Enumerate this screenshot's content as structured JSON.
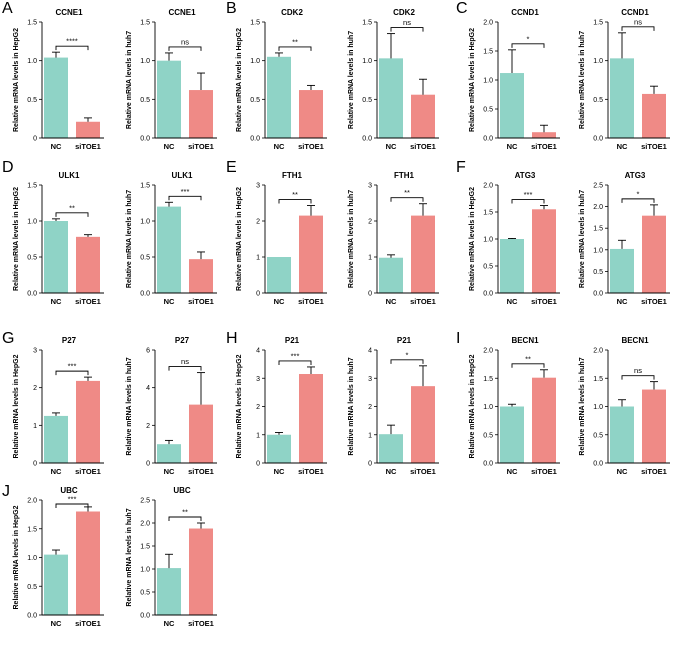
{
  "colors": {
    "nc": "#8fd3c6",
    "sitoe1": "#ef8a86",
    "axis": "#000000",
    "error": "#000000"
  },
  "panels": [
    {
      "label": "A"
    },
    {
      "label": "B"
    },
    {
      "label": "C"
    },
    {
      "label": "D"
    },
    {
      "label": "E"
    },
    {
      "label": "F"
    },
    {
      "label": "G"
    },
    {
      "label": "H"
    },
    {
      "label": "I"
    },
    {
      "label": "J"
    }
  ],
  "chart_data": [
    {
      "id": "A1",
      "panel": "A",
      "type": "bar",
      "title": "CCNE1",
      "ylabel": "Relative mRNA levels in HepG2",
      "categories": [
        "NC",
        "siTOE1"
      ],
      "values": [
        1.04,
        0.21
      ],
      "errors": [
        0.07,
        0.05
      ],
      "ylim": [
        0,
        1.5
      ],
      "yticks": [
        "0",
        "0.5",
        "1.0",
        "1.5"
      ],
      "significance": "****"
    },
    {
      "id": "A2",
      "panel": "A",
      "type": "bar",
      "title": "CCNE1",
      "ylabel": "Relative mRNA levels in huh7",
      "categories": [
        "NC",
        "siTOE1"
      ],
      "values": [
        1.0,
        0.62
      ],
      "errors": [
        0.1,
        0.22
      ],
      "ylim": [
        0,
        1.5
      ],
      "yticks": [
        "0.0",
        "0.5",
        "1.0",
        "1.5"
      ],
      "significance": "ns"
    },
    {
      "id": "B1",
      "panel": "B",
      "type": "bar",
      "title": "CDK2",
      "ylabel": "Relative mRNA levels in HepG2",
      "categories": [
        "NC",
        "siTOE1"
      ],
      "values": [
        1.05,
        0.62
      ],
      "errors": [
        0.05,
        0.06
      ],
      "ylim": [
        0,
        1.5
      ],
      "yticks": [
        "0.0",
        "0.5",
        "1.0",
        "1.5"
      ],
      "significance": "**"
    },
    {
      "id": "B2",
      "panel": "B",
      "type": "bar",
      "title": "CDK2",
      "ylabel": "Relative mRNA levels in huh7",
      "categories": [
        "NC",
        "siTOE1"
      ],
      "values": [
        1.03,
        0.56
      ],
      "errors": [
        0.32,
        0.2
      ],
      "ylim": [
        0,
        1.5
      ],
      "yticks": [
        "0.0",
        "0.5",
        "1.0",
        "1.5"
      ],
      "significance": "ns"
    },
    {
      "id": "C1",
      "panel": "C",
      "type": "bar",
      "title": "CCND1",
      "ylabel": "Relative mRNA levels in HepG2",
      "categories": [
        "NC",
        "siTOE1"
      ],
      "values": [
        1.12,
        0.1
      ],
      "errors": [
        0.4,
        0.12
      ],
      "ylim": [
        0,
        2.0
      ],
      "yticks": [
        "0.0",
        "0.5",
        "1.0",
        "1.5",
        "2.0"
      ],
      "significance": "*"
    },
    {
      "id": "C2",
      "panel": "C",
      "type": "bar",
      "title": "CCND1",
      "ylabel": "Relative mRNA levels in huh7",
      "categories": [
        "NC",
        "siTOE1"
      ],
      "values": [
        1.03,
        0.57
      ],
      "errors": [
        0.33,
        0.1
      ],
      "ylim": [
        0,
        1.5
      ],
      "yticks": [
        "0.0",
        "0.5",
        "1.0",
        "1.5"
      ],
      "significance": "ns"
    },
    {
      "id": "D1",
      "panel": "D",
      "type": "bar",
      "title": "ULK1",
      "ylabel": "Relative mRNA levels in HepG2",
      "categories": [
        "NC",
        "siTOE1"
      ],
      "values": [
        1.0,
        0.78
      ],
      "errors": [
        0.03,
        0.03
      ],
      "ylim": [
        0,
        1.5
      ],
      "yticks": [
        "0.0",
        "0.5",
        "1.0",
        "1.5"
      ],
      "significance": "**"
    },
    {
      "id": "D2",
      "panel": "D",
      "type": "bar",
      "title": "ULK1",
      "ylabel": "Relative mRNA levels in huh7",
      "categories": [
        "NC",
        "siTOE1"
      ],
      "values": [
        1.2,
        0.47
      ],
      "errors": [
        0.06,
        0.1
      ],
      "ylim": [
        0,
        1.5
      ],
      "yticks": [
        "0.0",
        "0.5",
        "1.0",
        "1.5"
      ],
      "significance": "***"
    },
    {
      "id": "E1",
      "panel": "E",
      "type": "bar",
      "title": "FTH1",
      "ylabel": "Relative mRNA levels in HepG2",
      "categories": [
        "NC",
        "siTOE1"
      ],
      "values": [
        1.0,
        2.15
      ],
      "errors": [
        0.0,
        0.28
      ],
      "ylim": [
        0,
        3
      ],
      "yticks": [
        "0",
        "1",
        "2",
        "3"
      ],
      "significance": "**"
    },
    {
      "id": "E2",
      "panel": "E",
      "type": "bar",
      "title": "FTH1",
      "ylabel": "Relative mRNA levels in huh7",
      "categories": [
        "NC",
        "siTOE1"
      ],
      "values": [
        0.98,
        2.15
      ],
      "errors": [
        0.08,
        0.33
      ],
      "ylim": [
        0,
        3
      ],
      "yticks": [
        "0",
        "1",
        "2",
        "3"
      ],
      "significance": "**"
    },
    {
      "id": "F1",
      "panel": "F",
      "type": "bar",
      "title": "ATG3",
      "ylabel": "Relative mRNA levels in HepG2",
      "categories": [
        "NC",
        "siTOE1"
      ],
      "values": [
        1.0,
        1.55
      ],
      "errors": [
        0.01,
        0.07
      ],
      "ylim": [
        0,
        2.0
      ],
      "yticks": [
        "0.0",
        "0.5",
        "1.0",
        "1.5",
        "2.0"
      ],
      "significance": "***"
    },
    {
      "id": "F2",
      "panel": "F",
      "type": "bar",
      "title": "ATG3",
      "ylabel": "Relative mRNA levels in huh7",
      "categories": [
        "NC",
        "siTOE1"
      ],
      "values": [
        1.02,
        1.79
      ],
      "errors": [
        0.2,
        0.25
      ],
      "ylim": [
        0,
        2.5
      ],
      "yticks": [
        "0.0",
        "0.5",
        "1.0",
        "1.5",
        "2.0",
        "2.5"
      ],
      "significance": "*"
    },
    {
      "id": "G1",
      "panel": "G",
      "type": "bar",
      "title": "P27",
      "ylabel": "Relative mRNA levels in HepG2",
      "categories": [
        "NC",
        "siTOE1"
      ],
      "values": [
        1.25,
        2.18
      ],
      "errors": [
        0.08,
        0.1
      ],
      "ylim": [
        0,
        3
      ],
      "yticks": [
        "0",
        "1",
        "2",
        "3"
      ],
      "significance": "***"
    },
    {
      "id": "G2",
      "panel": "G",
      "type": "bar",
      "title": "P27",
      "ylabel": "Relative mRNA levels in huh7",
      "categories": [
        "NC",
        "siTOE1"
      ],
      "values": [
        1.0,
        3.1
      ],
      "errors": [
        0.2,
        1.7
      ],
      "ylim": [
        0,
        6
      ],
      "yticks": [
        "0",
        "2",
        "4",
        "6"
      ],
      "significance": "ns"
    },
    {
      "id": "H1",
      "panel": "H",
      "type": "bar",
      "title": "P21",
      "ylabel": "Relative mRNA levels in HepG2",
      "categories": [
        "NC",
        "siTOE1"
      ],
      "values": [
        1.0,
        3.15
      ],
      "errors": [
        0.08,
        0.25
      ],
      "ylim": [
        0,
        4
      ],
      "yticks": [
        "0",
        "1",
        "2",
        "3",
        "4"
      ],
      "significance": "***"
    },
    {
      "id": "H2",
      "panel": "H",
      "type": "bar",
      "title": "P21",
      "ylabel": "Relative mRNA levels in huh7",
      "categories": [
        "NC",
        "siTOE1"
      ],
      "values": [
        1.02,
        2.72
      ],
      "errors": [
        0.32,
        0.72
      ],
      "ylim": [
        0,
        4
      ],
      "yticks": [
        "0",
        "1",
        "2",
        "3",
        "4"
      ],
      "significance": "*"
    },
    {
      "id": "I1",
      "panel": "I",
      "type": "bar",
      "title": "BECN1",
      "ylabel": "Relative mRNA levels in HepG2",
      "categories": [
        "NC",
        "siTOE1"
      ],
      "values": [
        1.0,
        1.51
      ],
      "errors": [
        0.04,
        0.14
      ],
      "ylim": [
        0,
        2.0
      ],
      "yticks": [
        "0.0",
        "0.5",
        "1.0",
        "1.5",
        "2.0"
      ],
      "significance": "**"
    },
    {
      "id": "I2",
      "panel": "I",
      "type": "bar",
      "title": "BECN1",
      "ylabel": "Relative mRNA levels in huh7",
      "categories": [
        "NC",
        "siTOE1"
      ],
      "values": [
        1.0,
        1.3
      ],
      "errors": [
        0.12,
        0.14
      ],
      "ylim": [
        0,
        2.0
      ],
      "yticks": [
        "0.0",
        "0.5",
        "1.0",
        "1.5",
        "2.0"
      ],
      "significance": "ns"
    },
    {
      "id": "J1",
      "panel": "J",
      "type": "bar",
      "title": "UBC",
      "ylabel": "Relative mRNA levels in HepG2",
      "categories": [
        "NC",
        "siTOE1"
      ],
      "values": [
        1.05,
        1.8
      ],
      "errors": [
        0.08,
        0.08
      ],
      "ylim": [
        0,
        2.0
      ],
      "yticks": [
        "0.0",
        "0.5",
        "1.0",
        "1.5",
        "2.0"
      ],
      "significance": "***"
    },
    {
      "id": "J2",
      "panel": "J",
      "type": "bar",
      "title": "UBC",
      "ylabel": "Relative mRNA levels in huh7",
      "categories": [
        "NC",
        "siTOE1"
      ],
      "values": [
        1.02,
        1.88
      ],
      "errors": [
        0.3,
        0.12
      ],
      "ylim": [
        0,
        2.5
      ],
      "yticks": [
        "0.0",
        "0.5",
        "1.0",
        "1.5",
        "2.0",
        "2.5"
      ],
      "significance": "**"
    }
  ]
}
